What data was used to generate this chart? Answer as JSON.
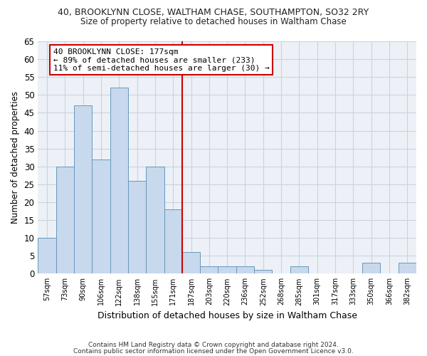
{
  "title": "40, BROOKLYNN CLOSE, WALTHAM CHASE, SOUTHAMPTON, SO32 2RY",
  "subtitle": "Size of property relative to detached houses in Waltham Chase",
  "xlabel": "Distribution of detached houses by size in Waltham Chase",
  "ylabel": "Number of detached properties",
  "bar_labels": [
    "57sqm",
    "73sqm",
    "90sqm",
    "106sqm",
    "122sqm",
    "138sqm",
    "155sqm",
    "171sqm",
    "187sqm",
    "203sqm",
    "220sqm",
    "236sqm",
    "252sqm",
    "268sqm",
    "285sqm",
    "301sqm",
    "317sqm",
    "333sqm",
    "350sqm",
    "366sqm",
    "382sqm"
  ],
  "bar_values": [
    10,
    30,
    47,
    32,
    52,
    26,
    30,
    18,
    6,
    2,
    2,
    2,
    1,
    0,
    2,
    0,
    0,
    0,
    3,
    0,
    3
  ],
  "bar_color": "#c8d8ed",
  "bar_edge_color": "#6699bb",
  "grid_color": "#c8d4e0",
  "vline_x": 7.5,
  "vline_color": "#cc0000",
  "annotation_line1": "40 BROOKLYNN CLOSE: 177sqm",
  "annotation_line2": "← 89% of detached houses are smaller (233)",
  "annotation_line3": "11% of semi-detached houses are larger (30) →",
  "annotation_box_color": "#ffffff",
  "annotation_box_edge": "#cc0000",
  "ylim": [
    0,
    65
  ],
  "yticks": [
    0,
    5,
    10,
    15,
    20,
    25,
    30,
    35,
    40,
    45,
    50,
    55,
    60,
    65
  ],
  "footnote1": "Contains HM Land Registry data © Crown copyright and database right 2024.",
  "footnote2": "Contains public sector information licensed under the Open Government Licence v3.0.",
  "bg_color": "#ffffff",
  "plot_bg_color": "#edf1f7"
}
